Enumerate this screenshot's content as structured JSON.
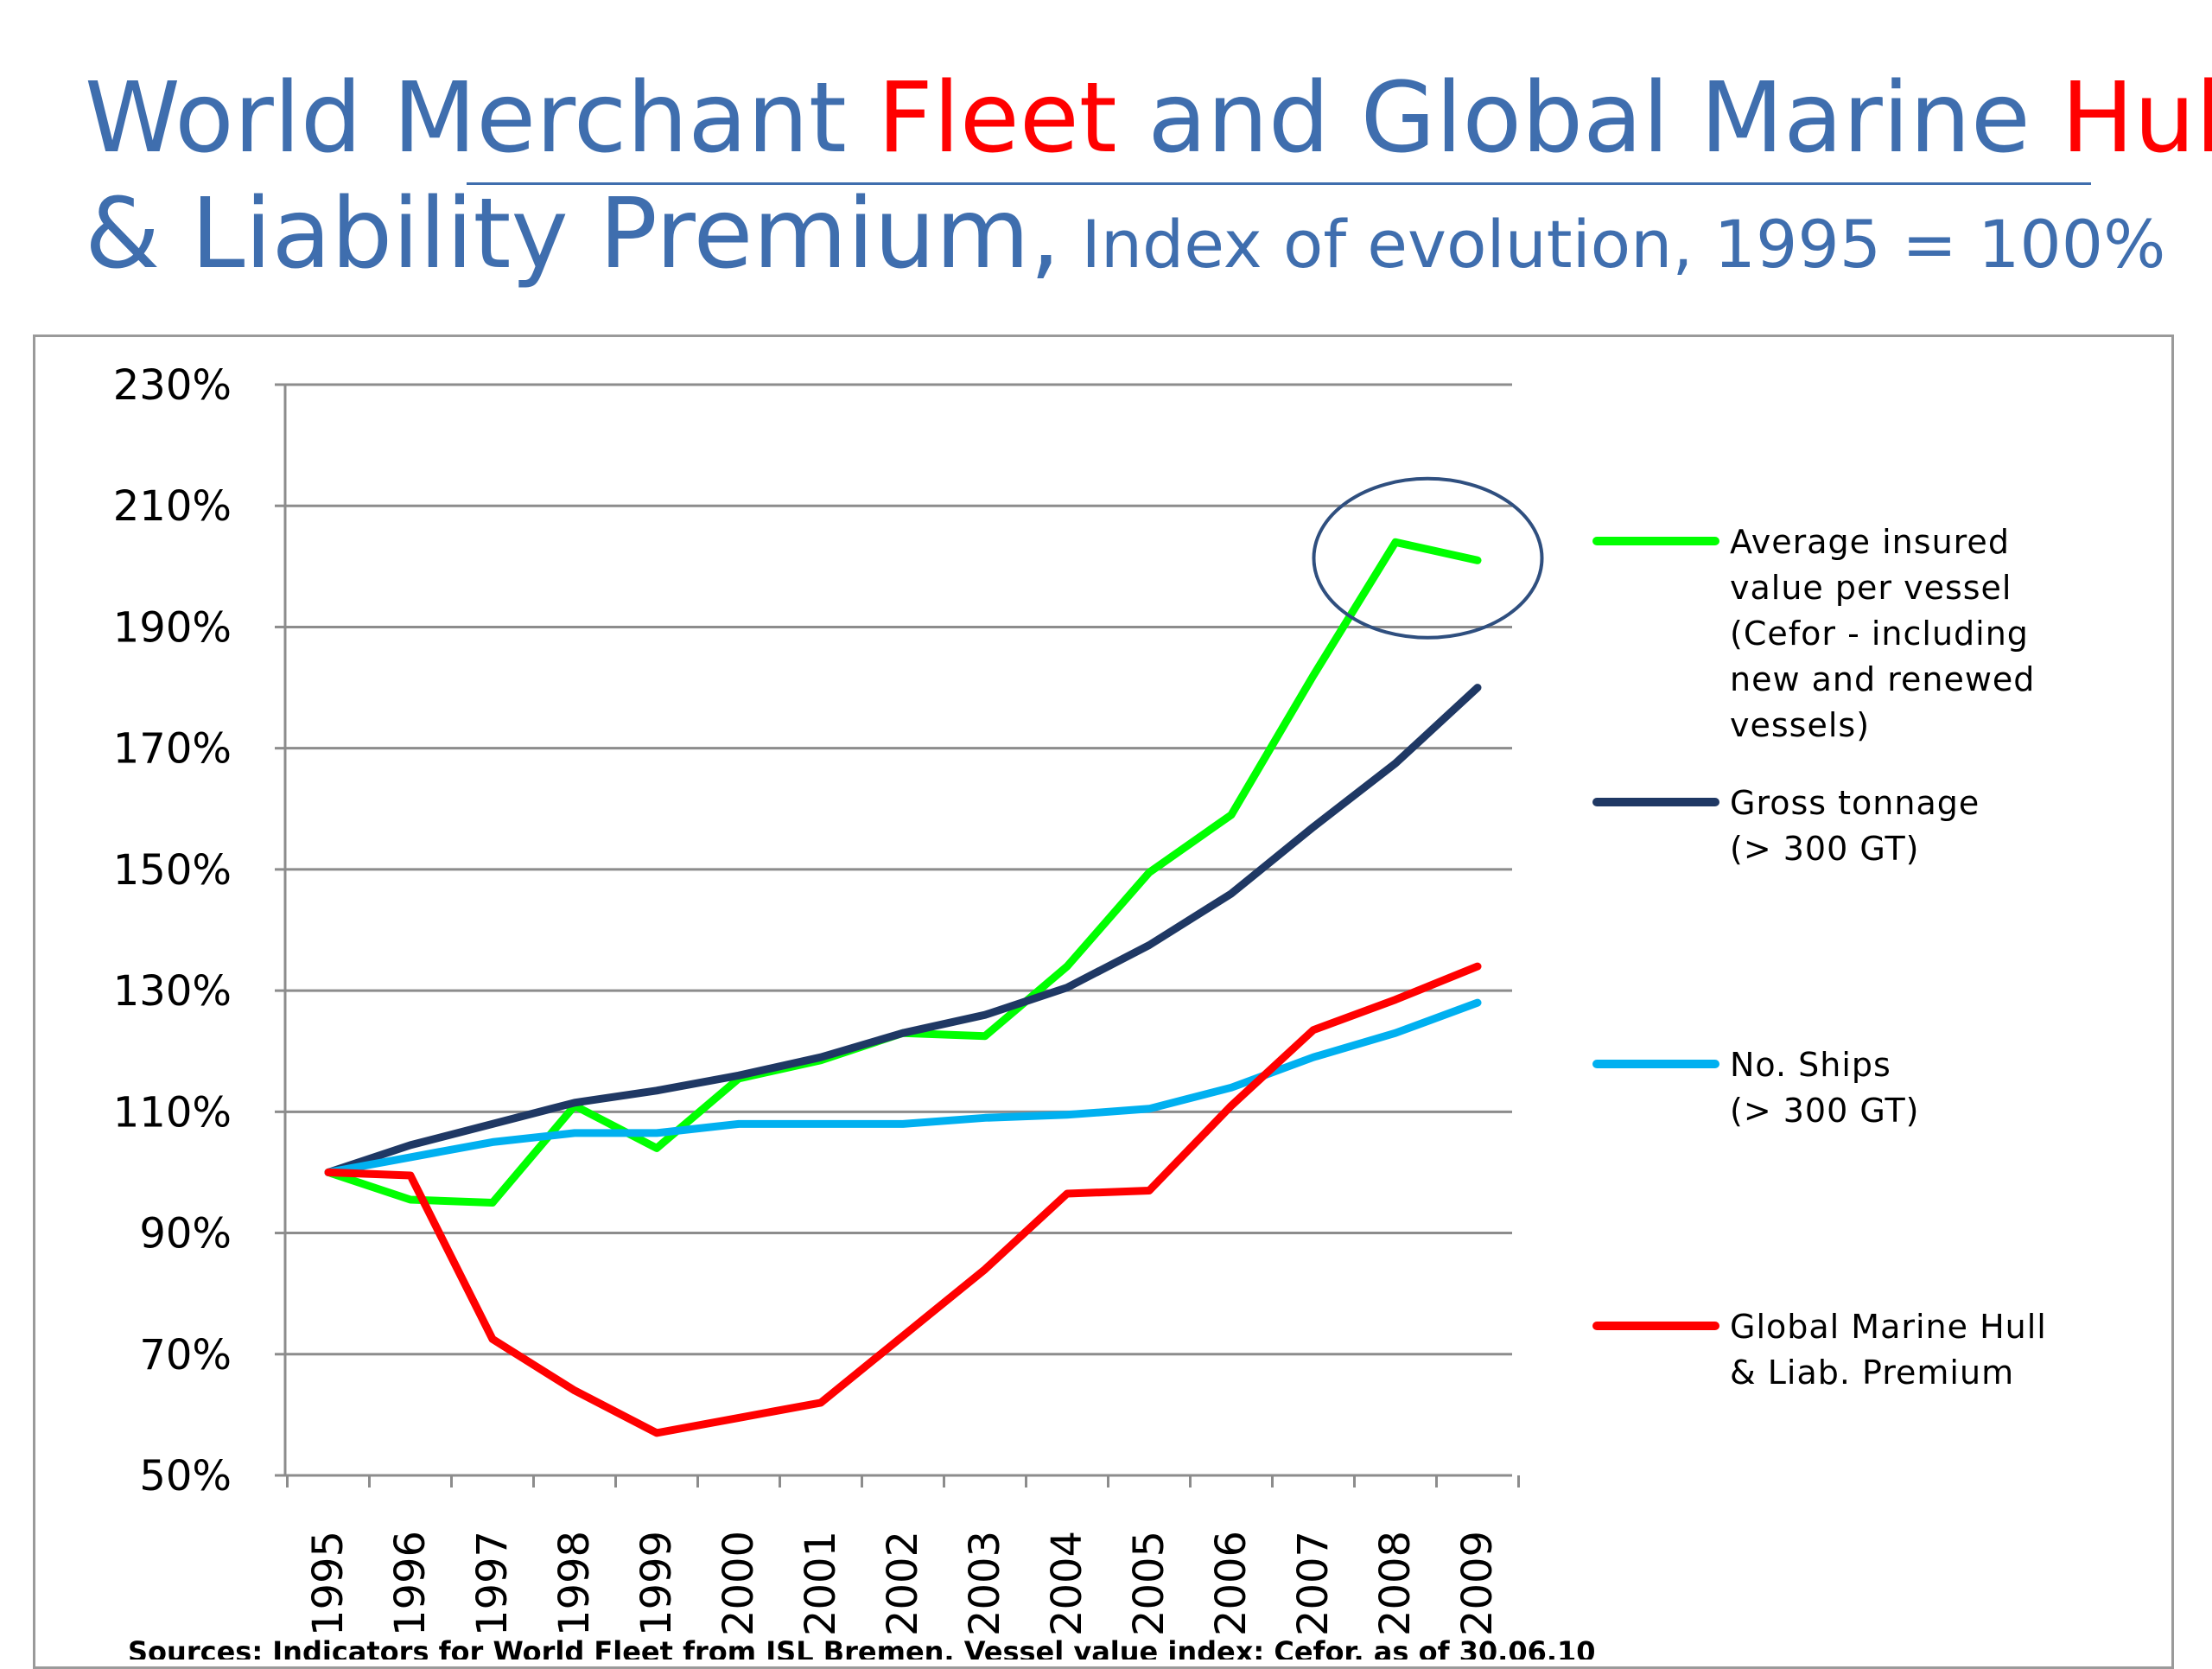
{
  "title": {
    "line1_part1": "World Merchant ",
    "line1_highlight1": "Fleet",
    "line1_part2": " and Global Marine ",
    "line1_highlight2": "Hull",
    "line2_main": "& Liability Premium,",
    "line2_sub": " Index of evolution, 1995 = 100%"
  },
  "colors": {
    "title_blue": "#3F6EAE",
    "highlight_red": "#FF0000"
  },
  "chart_data": {
    "type": "line",
    "x": [
      "1995",
      "1996",
      "1997",
      "1998",
      "1999",
      "2000",
      "2001",
      "2002",
      "2003",
      "2004",
      "2005",
      "2006",
      "2007",
      "2008",
      "2009"
    ],
    "yticks": [
      "230%",
      "210%",
      "190%",
      "170%",
      "150%",
      "130%",
      "110%",
      "90%",
      "70%",
      "50%"
    ],
    "ylim": [
      50,
      230
    ],
    "grid": true,
    "legend_position": "right",
    "series": [
      {
        "name": "Average insured value per vessel (Cefor - including new and renewed vessels)",
        "legend_lines": [
          "Average insured",
          "value per vessel",
          "(Cefor - including",
          "new and renewed",
          "vessels)"
        ],
        "color": "#00FF00",
        "values": [
          100,
          95.5,
          95,
          111,
          104,
          115.5,
          118.5,
          123,
          122.5,
          134,
          149.5,
          159,
          182,
          204,
          201
        ]
      },
      {
        "name": "Gross tonnage (> 300 GT)",
        "legend_lines": [
          "Gross tonnage",
          "(> 300 GT)"
        ],
        "color": "#1F3864",
        "values": [
          100,
          104.5,
          108,
          111.5,
          113.5,
          116,
          119,
          123,
          126,
          130.5,
          137.5,
          146,
          157,
          167.5,
          180
        ]
      },
      {
        "name": "No. Ships (> 300 GT)",
        "legend_lines": [
          "No. Ships",
          "(> 300 GT)"
        ],
        "color": "#00B0F0",
        "values": [
          100,
          102.5,
          105,
          106.5,
          106.5,
          108,
          108,
          108,
          109,
          109.5,
          110.5,
          114,
          119,
          123,
          128
        ]
      },
      {
        "name": "Global Marine Hull & Liab. Premium",
        "legend_lines": [
          "Global Marine Hull",
          "& Liab. Premium"
        ],
        "color": "#FF0000",
        "values": [
          100,
          99.5,
          72.5,
          64,
          57,
          59.5,
          62,
          73,
          84,
          96.5,
          97,
          111,
          123.5,
          128.5,
          134
        ]
      }
    ],
    "annotation": "ellipse highlighting Average insured value per vessel at 2008-2009"
  },
  "source_note": "Sources: Indicators for World Fleet from ISL Bremen, Vessel value index: Cefor, as of 30.06.10"
}
